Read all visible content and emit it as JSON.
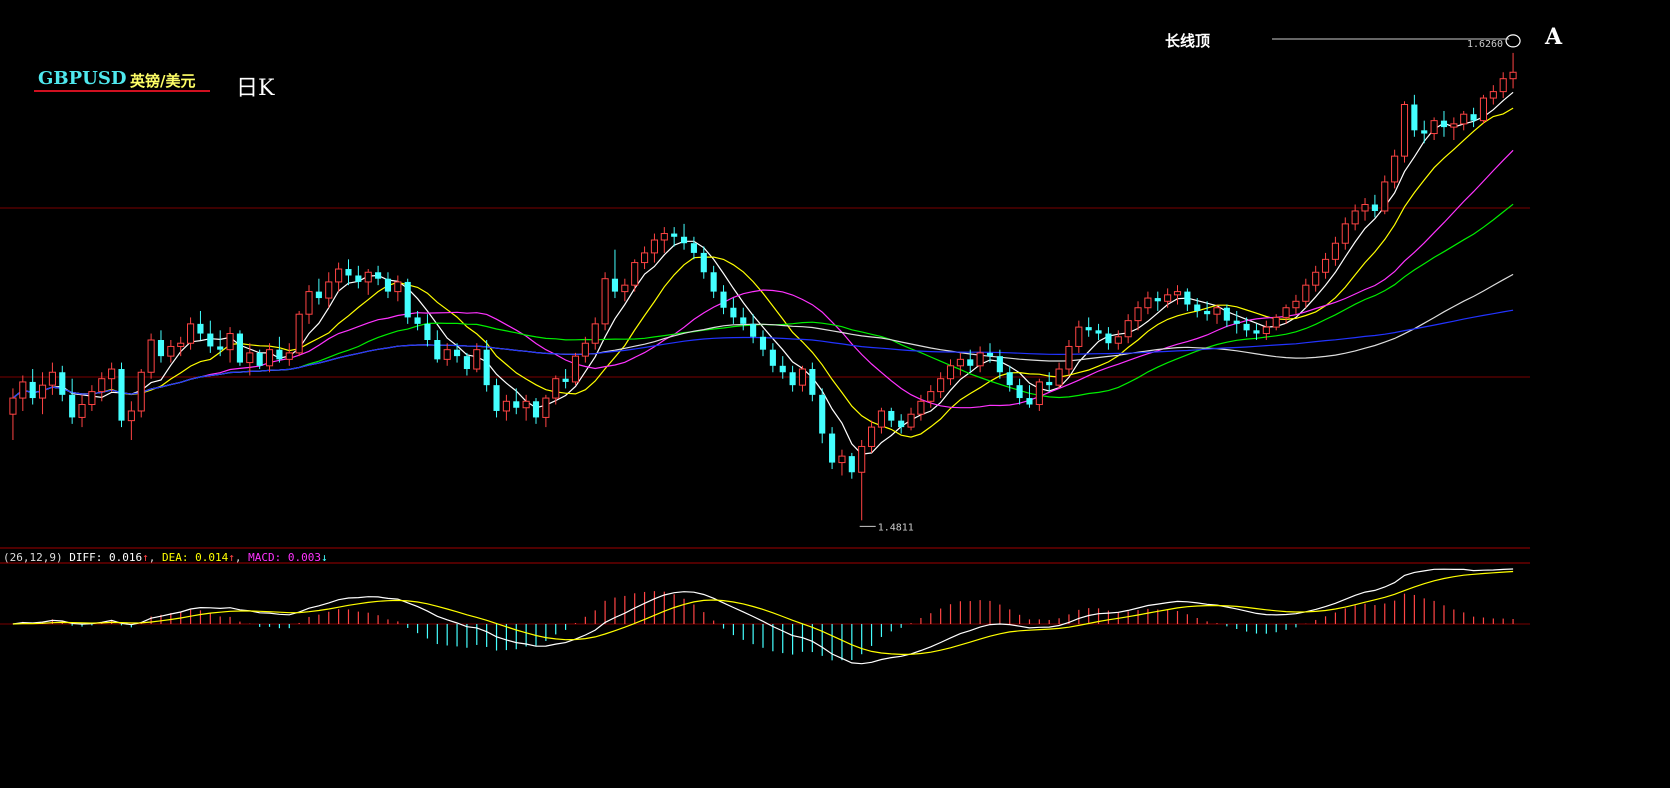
{
  "header": {
    "symbol": "GBPUSD",
    "name_cn": "英镑/美元",
    "period": "日K"
  },
  "annotations": {
    "top_label": "长线顶",
    "marker": "A",
    "high_label": "1.6260",
    "low_label": "1.4811"
  },
  "macd_header": {
    "params": "(26,12,9)",
    "diff_label": "DIFF:",
    "diff_value": "0.016",
    "diff_arrow": "↑",
    "dea_label": "DEA:",
    "dea_value": "0.014",
    "dea_arrow": "↑",
    "macd_label": "MACD:",
    "macd_value": "0.003",
    "macd_arrow": "↓"
  },
  "colors": {
    "up_candle": "#ff4444",
    "down_candle": "#44ffff",
    "ma5": "#ffffff",
    "ma10": "#ffff00",
    "ma20": "#ff33ff",
    "ma30": "#00ee00",
    "ma60": "#dddddd",
    "ma120": "#2233ff",
    "diff": "#ffffff",
    "dea": "#ffff00",
    "grid": "#7a0000"
  },
  "chart_data": {
    "type": "candlestick",
    "ylim": [
      1.475,
      1.63
    ],
    "candles": [
      [
        1.514,
        1.522,
        1.506,
        1.519
      ],
      [
        1.519,
        1.526,
        1.515,
        1.524
      ],
      [
        1.524,
        1.528,
        1.517,
        1.519
      ],
      [
        1.519,
        1.527,
        1.514,
        1.523
      ],
      [
        1.523,
        1.53,
        1.52,
        1.527
      ],
      [
        1.527,
        1.529,
        1.518,
        1.52
      ],
      [
        1.52,
        1.525,
        1.511,
        1.513
      ],
      [
        1.513,
        1.52,
        1.51,
        1.517
      ],
      [
        1.517,
        1.523,
        1.515,
        1.521
      ],
      [
        1.521,
        1.527,
        1.518,
        1.525
      ],
      [
        1.525,
        1.53,
        1.521,
        1.528
      ],
      [
        1.528,
        1.53,
        1.51,
        1.512
      ],
      [
        1.512,
        1.518,
        1.506,
        1.515
      ],
      [
        1.515,
        1.528,
        1.513,
        1.527
      ],
      [
        1.527,
        1.539,
        1.525,
        1.537
      ],
      [
        1.537,
        1.54,
        1.53,
        1.532
      ],
      [
        1.532,
        1.537,
        1.53,
        1.535
      ],
      [
        1.535,
        1.538,
        1.532,
        1.536
      ],
      [
        1.536,
        1.544,
        1.534,
        1.542
      ],
      [
        1.542,
        1.546,
        1.537,
        1.539
      ],
      [
        1.539,
        1.543,
        1.533,
        1.535
      ],
      [
        1.535,
        1.54,
        1.532,
        1.534
      ],
      [
        1.534,
        1.541,
        1.53,
        1.539
      ],
      [
        1.539,
        1.54,
        1.529,
        1.53
      ],
      [
        1.53,
        1.536,
        1.526,
        1.533
      ],
      [
        1.533,
        1.534,
        1.528,
        1.529
      ],
      [
        1.529,
        1.536,
        1.527,
        1.534
      ],
      [
        1.534,
        1.538,
        1.53,
        1.531
      ],
      [
        1.531,
        1.536,
        1.529,
        1.533
      ],
      [
        1.533,
        1.546,
        1.532,
        1.545
      ],
      [
        1.545,
        1.554,
        1.542,
        1.552
      ],
      [
        1.552,
        1.556,
        1.548,
        1.55
      ],
      [
        1.55,
        1.558,
        1.547,
        1.555
      ],
      [
        1.555,
        1.561,
        1.552,
        1.559
      ],
      [
        1.559,
        1.562,
        1.554,
        1.557
      ],
      [
        1.557,
        1.56,
        1.553,
        1.555
      ],
      [
        1.555,
        1.559,
        1.551,
        1.558
      ],
      [
        1.558,
        1.56,
        1.554,
        1.556
      ],
      [
        1.556,
        1.558,
        1.55,
        1.552
      ],
      [
        1.552,
        1.557,
        1.549,
        1.555
      ],
      [
        1.555,
        1.556,
        1.542,
        1.544
      ],
      [
        1.544,
        1.546,
        1.54,
        1.542
      ],
      [
        1.542,
        1.545,
        1.535,
        1.537
      ],
      [
        1.537,
        1.54,
        1.53,
        1.531
      ],
      [
        1.531,
        1.536,
        1.529,
        1.534
      ],
      [
        1.534,
        1.536,
        1.53,
        1.532
      ],
      [
        1.532,
        1.533,
        1.526,
        1.528
      ],
      [
        1.528,
        1.536,
        1.527,
        1.534
      ],
      [
        1.534,
        1.537,
        1.521,
        1.523
      ],
      [
        1.523,
        1.525,
        1.513,
        1.515
      ],
      [
        1.515,
        1.52,
        1.512,
        1.518
      ],
      [
        1.518,
        1.522,
        1.514,
        1.516
      ],
      [
        1.516,
        1.52,
        1.512,
        1.518
      ],
      [
        1.518,
        1.519,
        1.511,
        1.513
      ],
      [
        1.513,
        1.52,
        1.51,
        1.519
      ],
      [
        1.519,
        1.526,
        1.517,
        1.525
      ],
      [
        1.525,
        1.528,
        1.522,
        1.524
      ],
      [
        1.524,
        1.533,
        1.523,
        1.532
      ],
      [
        1.532,
        1.538,
        1.53,
        1.536
      ],
      [
        1.536,
        1.544,
        1.534,
        1.542
      ],
      [
        1.542,
        1.558,
        1.54,
        1.556
      ],
      [
        1.556,
        1.565,
        1.55,
        1.552
      ],
      [
        1.552,
        1.556,
        1.549,
        1.554
      ],
      [
        1.554,
        1.562,
        1.552,
        1.561
      ],
      [
        1.561,
        1.566,
        1.559,
        1.564
      ],
      [
        1.564,
        1.57,
        1.561,
        1.568
      ],
      [
        1.568,
        1.572,
        1.564,
        1.57
      ],
      [
        1.57,
        1.572,
        1.566,
        1.569
      ],
      [
        1.569,
        1.573,
        1.565,
        1.567
      ],
      [
        1.567,
        1.569,
        1.562,
        1.564
      ],
      [
        1.564,
        1.566,
        1.556,
        1.558
      ],
      [
        1.558,
        1.56,
        1.55,
        1.552
      ],
      [
        1.552,
        1.554,
        1.545,
        1.547
      ],
      [
        1.547,
        1.55,
        1.542,
        1.544
      ],
      [
        1.544,
        1.547,
        1.54,
        1.542
      ],
      [
        1.542,
        1.545,
        1.536,
        1.538
      ],
      [
        1.538,
        1.54,
        1.532,
        1.534
      ],
      [
        1.534,
        1.536,
        1.527,
        1.529
      ],
      [
        1.529,
        1.532,
        1.525,
        1.527
      ],
      [
        1.527,
        1.529,
        1.521,
        1.523
      ],
      [
        1.523,
        1.529,
        1.521,
        1.528
      ],
      [
        1.528,
        1.53,
        1.518,
        1.52
      ],
      [
        1.52,
        1.522,
        1.505,
        1.508
      ],
      [
        1.508,
        1.51,
        1.497,
        1.499
      ],
      [
        1.499,
        1.503,
        1.495,
        1.501
      ],
      [
        1.501,
        1.502,
        1.494,
        1.496
      ],
      [
        1.496,
        1.506,
        1.4811,
        1.504
      ],
      [
        1.504,
        1.512,
        1.502,
        1.51
      ],
      [
        1.51,
        1.516,
        1.508,
        1.515
      ],
      [
        1.515,
        1.516,
        1.51,
        1.512
      ],
      [
        1.512,
        1.514,
        1.508,
        1.51
      ],
      [
        1.51,
        1.516,
        1.509,
        1.514
      ],
      [
        1.514,
        1.52,
        1.512,
        1.518
      ],
      [
        1.518,
        1.523,
        1.516,
        1.521
      ],
      [
        1.521,
        1.527,
        1.519,
        1.525
      ],
      [
        1.525,
        1.531,
        1.523,
        1.529
      ],
      [
        1.529,
        1.533,
        1.526,
        1.531
      ],
      [
        1.531,
        1.534,
        1.527,
        1.529
      ],
      [
        1.529,
        1.535,
        1.527,
        1.533
      ],
      [
        1.533,
        1.536,
        1.53,
        1.532
      ],
      [
        1.532,
        1.534,
        1.525,
        1.527
      ],
      [
        1.527,
        1.529,
        1.521,
        1.523
      ],
      [
        1.523,
        1.525,
        1.517,
        1.519
      ],
      [
        1.519,
        1.523,
        1.516,
        1.517
      ],
      [
        1.517,
        1.525,
        1.515,
        1.524
      ],
      [
        1.524,
        1.527,
        1.521,
        1.523
      ],
      [
        1.523,
        1.53,
        1.522,
        1.528
      ],
      [
        1.528,
        1.537,
        1.526,
        1.535
      ],
      [
        1.535,
        1.543,
        1.533,
        1.541
      ],
      [
        1.541,
        1.544,
        1.538,
        1.54
      ],
      [
        1.54,
        1.542,
        1.537,
        1.539
      ],
      [
        1.539,
        1.541,
        1.534,
        1.536
      ],
      [
        1.536,
        1.54,
        1.534,
        1.538
      ],
      [
        1.538,
        1.545,
        1.536,
        1.543
      ],
      [
        1.543,
        1.549,
        1.54,
        1.547
      ],
      [
        1.547,
        1.552,
        1.545,
        1.55
      ],
      [
        1.55,
        1.552,
        1.546,
        1.549
      ],
      [
        1.549,
        1.553,
        1.547,
        1.551
      ],
      [
        1.551,
        1.554,
        1.548,
        1.552
      ],
      [
        1.552,
        1.553,
        1.546,
        1.548
      ],
      [
        1.548,
        1.55,
        1.544,
        1.546
      ],
      [
        1.546,
        1.549,
        1.543,
        1.545
      ],
      [
        1.545,
        1.548,
        1.542,
        1.547
      ],
      [
        1.547,
        1.548,
        1.541,
        1.543
      ],
      [
        1.543,
        1.546,
        1.539,
        1.542
      ],
      [
        1.542,
        1.544,
        1.538,
        1.54
      ],
      [
        1.54,
        1.542,
        1.537,
        1.539
      ],
      [
        1.539,
        1.543,
        1.537,
        1.541
      ],
      [
        1.541,
        1.545,
        1.54,
        1.544
      ],
      [
        1.544,
        1.548,
        1.542,
        1.547
      ],
      [
        1.547,
        1.551,
        1.545,
        1.549
      ],
      [
        1.549,
        1.556,
        1.547,
        1.554
      ],
      [
        1.554,
        1.56,
        1.552,
        1.558
      ],
      [
        1.558,
        1.564,
        1.556,
        1.562
      ],
      [
        1.562,
        1.569,
        1.56,
        1.567
      ],
      [
        1.567,
        1.575,
        1.565,
        1.573
      ],
      [
        1.573,
        1.579,
        1.571,
        1.577
      ],
      [
        1.577,
        1.581,
        1.574,
        1.579
      ],
      [
        1.579,
        1.582,
        1.575,
        1.577
      ],
      [
        1.577,
        1.588,
        1.576,
        1.586
      ],
      [
        1.586,
        1.596,
        1.584,
        1.594
      ],
      [
        1.594,
        1.611,
        1.592,
        1.61
      ],
      [
        1.61,
        1.613,
        1.6,
        1.602
      ],
      [
        1.602,
        1.605,
        1.598,
        1.601
      ],
      [
        1.601,
        1.606,
        1.599,
        1.605
      ],
      [
        1.605,
        1.608,
        1.6,
        1.603
      ],
      [
        1.603,
        1.606,
        1.599,
        1.604
      ],
      [
        1.604,
        1.608,
        1.602,
        1.607
      ],
      [
        1.607,
        1.609,
        1.603,
        1.605
      ],
      [
        1.605,
        1.613,
        1.604,
        1.612
      ],
      [
        1.612,
        1.616,
        1.61,
        1.614
      ],
      [
        1.614,
        1.62,
        1.612,
        1.618
      ],
      [
        1.618,
        1.626,
        1.615,
        1.62
      ]
    ],
    "ma_periods": [
      5,
      10,
      20,
      30,
      60,
      120
    ],
    "macd": {
      "fast": 12,
      "slow": 26,
      "signal": 9
    }
  }
}
